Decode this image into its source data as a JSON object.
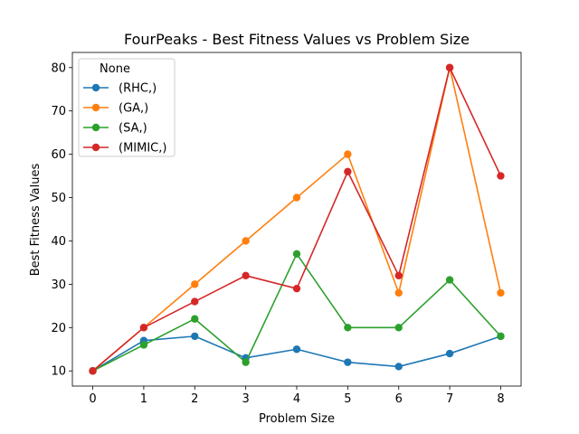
{
  "chart_data": {
    "type": "line",
    "title": "FourPeaks - Best Fitness Values vs Problem Size",
    "xlabel": "Problem Size",
    "ylabel": "Best Fitness Values",
    "x": [
      0,
      1,
      2,
      3,
      4,
      5,
      6,
      7,
      8
    ],
    "xlim": [
      -0.4,
      8.4
    ],
    "ylim": [
      6.5,
      83.5
    ],
    "xticks": [
      0,
      1,
      2,
      3,
      4,
      5,
      6,
      7,
      8
    ],
    "yticks": [
      10,
      20,
      30,
      40,
      50,
      60,
      70,
      80
    ],
    "grid": false,
    "legend": {
      "title": "None",
      "placement": "top-left"
    },
    "series": [
      {
        "name": "(RHC,)",
        "color": "#1f77b4",
        "values": [
          10,
          17,
          18,
          13,
          15,
          12,
          11,
          14,
          18
        ]
      },
      {
        "name": "(GA,)",
        "color": "#ff7f0e",
        "values": [
          10,
          20,
          30,
          40,
          50,
          60,
          28,
          80,
          28
        ]
      },
      {
        "name": "(SA,)",
        "color": "#2ca02c",
        "values": [
          10,
          16,
          22,
          12,
          37,
          20,
          20,
          31,
          18
        ]
      },
      {
        "name": "(MIMIC,)",
        "color": "#d62728",
        "values": [
          10,
          20,
          26,
          32,
          29,
          56,
          32,
          80,
          55
        ]
      }
    ]
  }
}
